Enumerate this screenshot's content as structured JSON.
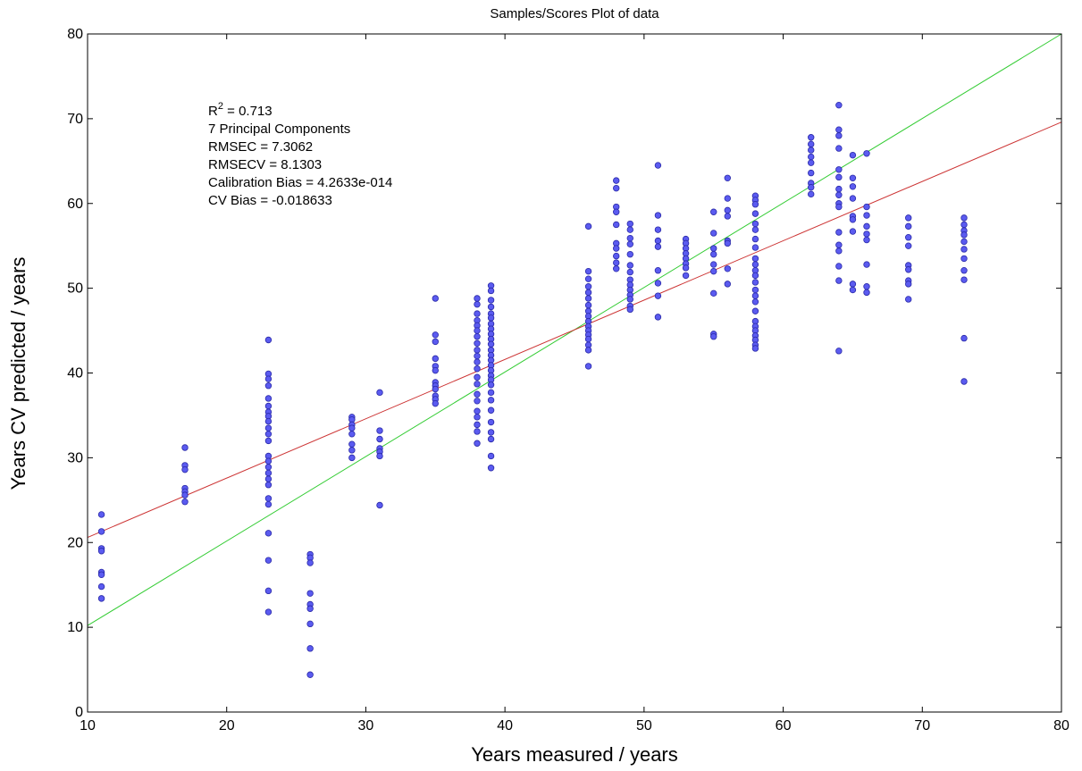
{
  "chart_data": {
    "type": "scatter",
    "title": "Samples/Scores Plot of data",
    "xlabel": "Years measured / years",
    "ylabel": "Years CV predicted / years",
    "xlim": [
      10,
      80
    ],
    "ylim": [
      0,
      80
    ],
    "xticks": [
      10,
      20,
      30,
      40,
      50,
      60,
      70,
      80
    ],
    "yticks": [
      0,
      10,
      20,
      30,
      40,
      50,
      60,
      70,
      80
    ],
    "grid": false,
    "point_color": "#5b5bf0",
    "annotations": [
      {
        "prefix": "R",
        "sup": "2",
        "suffix": " = 0.713"
      },
      {
        "text": "7 Principal Components"
      },
      {
        "text": "RMSEC = 7.3062"
      },
      {
        "text": "RMSECV = 8.1303"
      },
      {
        "text": "Calibration Bias = 4.2633e-014"
      },
      {
        "text": "CV Bias = -0.018633"
      }
    ],
    "lines": [
      {
        "name": "target",
        "color": "#33cc33",
        "x": [
          10,
          80
        ],
        "y": [
          10.2,
          80
        ]
      },
      {
        "name": "fit",
        "color": "#cc3333",
        "x": [
          10,
          80
        ],
        "y": [
          20.6,
          69.6
        ]
      }
    ],
    "points": [
      [
        11,
        23.3
      ],
      [
        11,
        21.3
      ],
      [
        11,
        19.3
      ],
      [
        11,
        19.0
      ],
      [
        11,
        16.5
      ],
      [
        11,
        16.2
      ],
      [
        11,
        14.8
      ],
      [
        11,
        13.4
      ],
      [
        17,
        31.2
      ],
      [
        17,
        29.1
      ],
      [
        17,
        28.6
      ],
      [
        17,
        26.4
      ],
      [
        17,
        26.0
      ],
      [
        17,
        25.6
      ],
      [
        17,
        24.8
      ],
      [
        23,
        43.9
      ],
      [
        23,
        39.9
      ],
      [
        23,
        39.3
      ],
      [
        23,
        38.5
      ],
      [
        23,
        37.0
      ],
      [
        23,
        36.1
      ],
      [
        23,
        35.4
      ],
      [
        23,
        34.9
      ],
      [
        23,
        34.3
      ],
      [
        23,
        33.5
      ],
      [
        23,
        32.8
      ],
      [
        23,
        32.0
      ],
      [
        23,
        30.2
      ],
      [
        23,
        29.6
      ],
      [
        23,
        28.9
      ],
      [
        23,
        28.2
      ],
      [
        23,
        27.5
      ],
      [
        23,
        26.8
      ],
      [
        23,
        25.2
      ],
      [
        23,
        24.5
      ],
      [
        23,
        21.1
      ],
      [
        23,
        17.9
      ],
      [
        23,
        14.3
      ],
      [
        23,
        11.8
      ],
      [
        26,
        18.6
      ],
      [
        26,
        18.2
      ],
      [
        26,
        17.6
      ],
      [
        26,
        14.0
      ],
      [
        26,
        12.7
      ],
      [
        26,
        12.2
      ],
      [
        26,
        10.4
      ],
      [
        26,
        7.5
      ],
      [
        26,
        4.4
      ],
      [
        29,
        34.8
      ],
      [
        29,
        34.5
      ],
      [
        29,
        33.9
      ],
      [
        29,
        33.5
      ],
      [
        29,
        32.8
      ],
      [
        29,
        31.6
      ],
      [
        29,
        30.9
      ],
      [
        29,
        30.0
      ],
      [
        31,
        37.7
      ],
      [
        31,
        33.2
      ],
      [
        31,
        32.2
      ],
      [
        31,
        31.1
      ],
      [
        31,
        30.7
      ],
      [
        31,
        30.2
      ],
      [
        31,
        24.4
      ],
      [
        35,
        48.8
      ],
      [
        35,
        44.5
      ],
      [
        35,
        43.7
      ],
      [
        35,
        41.7
      ],
      [
        35,
        40.8
      ],
      [
        35,
        40.3
      ],
      [
        35,
        38.9
      ],
      [
        35,
        38.5
      ],
      [
        35,
        38.1
      ],
      [
        35,
        37.3
      ],
      [
        35,
        36.9
      ],
      [
        35,
        36.4
      ],
      [
        38,
        48.8
      ],
      [
        38,
        48.1
      ],
      [
        38,
        47.0
      ],
      [
        38,
        46.2
      ],
      [
        38,
        45.6
      ],
      [
        38,
        45.0
      ],
      [
        38,
        44.3
      ],
      [
        38,
        43.5
      ],
      [
        38,
        42.7
      ],
      [
        38,
        42.0
      ],
      [
        38,
        41.3
      ],
      [
        38,
        40.5
      ],
      [
        38,
        39.5
      ],
      [
        38,
        38.7
      ],
      [
        38,
        37.5
      ],
      [
        38,
        36.7
      ],
      [
        38,
        35.5
      ],
      [
        38,
        34.8
      ],
      [
        38,
        33.9
      ],
      [
        38,
        33.1
      ],
      [
        38,
        31.7
      ],
      [
        39,
        50.3
      ],
      [
        39,
        49.7
      ],
      [
        39,
        48.6
      ],
      [
        39,
        47.8
      ],
      [
        39,
        47.0
      ],
      [
        39,
        46.5
      ],
      [
        39,
        45.8
      ],
      [
        39,
        45.2
      ],
      [
        39,
        44.6
      ],
      [
        39,
        44.0
      ],
      [
        39,
        43.4
      ],
      [
        39,
        42.7
      ],
      [
        39,
        42.1
      ],
      [
        39,
        41.5
      ],
      [
        39,
        40.9
      ],
      [
        39,
        40.3
      ],
      [
        39,
        39.7
      ],
      [
        39,
        39.2
      ],
      [
        39,
        38.6
      ],
      [
        39,
        37.7
      ],
      [
        39,
        36.8
      ],
      [
        39,
        35.6
      ],
      [
        39,
        34.2
      ],
      [
        39,
        33.0
      ],
      [
        39,
        32.2
      ],
      [
        39,
        30.2
      ],
      [
        39,
        28.8
      ],
      [
        46,
        57.3
      ],
      [
        46,
        52.0
      ],
      [
        46,
        51.1
      ],
      [
        46,
        50.2
      ],
      [
        46,
        49.5
      ],
      [
        46,
        48.8
      ],
      [
        46,
        48.0
      ],
      [
        46,
        47.3
      ],
      [
        46,
        46.7
      ],
      [
        46,
        46.1
      ],
      [
        46,
        45.5
      ],
      [
        46,
        45.0
      ],
      [
        46,
        44.5
      ],
      [
        46,
        44.0
      ],
      [
        46,
        43.3
      ],
      [
        46,
        42.7
      ],
      [
        46,
        40.8
      ],
      [
        48,
        62.7
      ],
      [
        48,
        61.8
      ],
      [
        48,
        59.6
      ],
      [
        48,
        59.0
      ],
      [
        48,
        57.5
      ],
      [
        48,
        55.3
      ],
      [
        48,
        54.7
      ],
      [
        48,
        53.8
      ],
      [
        48,
        53.0
      ],
      [
        48,
        52.3
      ],
      [
        49,
        57.6
      ],
      [
        49,
        56.9
      ],
      [
        49,
        55.9
      ],
      [
        49,
        55.2
      ],
      [
        49,
        54.0
      ],
      [
        49,
        52.7
      ],
      [
        49,
        51.9
      ],
      [
        49,
        51.0
      ],
      [
        49,
        50.4
      ],
      [
        49,
        49.8
      ],
      [
        49,
        49.2
      ],
      [
        49,
        48.7
      ],
      [
        49,
        47.9
      ],
      [
        49,
        47.5
      ],
      [
        51,
        64.5
      ],
      [
        51,
        58.6
      ],
      [
        51,
        56.9
      ],
      [
        51,
        55.6
      ],
      [
        51,
        54.9
      ],
      [
        51,
        52.1
      ],
      [
        51,
        50.6
      ],
      [
        51,
        49.1
      ],
      [
        51,
        46.6
      ],
      [
        53,
        55.8
      ],
      [
        53,
        55.3
      ],
      [
        53,
        54.7
      ],
      [
        53,
        54.1
      ],
      [
        53,
        53.5
      ],
      [
        53,
        52.9
      ],
      [
        53,
        52.4
      ],
      [
        53,
        51.5
      ],
      [
        55,
        59.0
      ],
      [
        55,
        56.5
      ],
      [
        55,
        54.7
      ],
      [
        55,
        54.0
      ],
      [
        55,
        52.8
      ],
      [
        55,
        52.0
      ],
      [
        55,
        49.4
      ],
      [
        55,
        44.6
      ],
      [
        55,
        44.3
      ],
      [
        56,
        63.0
      ],
      [
        56,
        60.6
      ],
      [
        56,
        59.2
      ],
      [
        56,
        58.5
      ],
      [
        56,
        55.6
      ],
      [
        56,
        55.3
      ],
      [
        56,
        52.3
      ],
      [
        56,
        50.5
      ],
      [
        58,
        60.9
      ],
      [
        58,
        60.4
      ],
      [
        58,
        59.9
      ],
      [
        58,
        58.8
      ],
      [
        58,
        57.6
      ],
      [
        58,
        56.9
      ],
      [
        58,
        55.8
      ],
      [
        58,
        54.8
      ],
      [
        58,
        53.5
      ],
      [
        58,
        52.8
      ],
      [
        58,
        52.1
      ],
      [
        58,
        51.5
      ],
      [
        58,
        50.7
      ],
      [
        58,
        49.8
      ],
      [
        58,
        49.1
      ],
      [
        58,
        48.4
      ],
      [
        58,
        47.3
      ],
      [
        58,
        46.1
      ],
      [
        58,
        45.5
      ],
      [
        58,
        45.0
      ],
      [
        58,
        44.4
      ],
      [
        58,
        43.9
      ],
      [
        58,
        43.3
      ],
      [
        58,
        42.9
      ],
      [
        62,
        67.8
      ],
      [
        62,
        67.0
      ],
      [
        62,
        66.3
      ],
      [
        62,
        65.5
      ],
      [
        62,
        64.8
      ],
      [
        62,
        63.6
      ],
      [
        62,
        62.4
      ],
      [
        62,
        61.9
      ],
      [
        62,
        61.1
      ],
      [
        64,
        71.6
      ],
      [
        64,
        68.7
      ],
      [
        64,
        68.0
      ],
      [
        64,
        66.5
      ],
      [
        64,
        64.0
      ],
      [
        64,
        63.1
      ],
      [
        64,
        61.7
      ],
      [
        64,
        61.0
      ],
      [
        64,
        60.0
      ],
      [
        64,
        59.6
      ],
      [
        64,
        56.6
      ],
      [
        64,
        55.1
      ],
      [
        64,
        54.4
      ],
      [
        64,
        52.6
      ],
      [
        64,
        50.9
      ],
      [
        64,
        42.6
      ],
      [
        65,
        65.7
      ],
      [
        65,
        63.0
      ],
      [
        65,
        62.0
      ],
      [
        65,
        60.6
      ],
      [
        65,
        58.5
      ],
      [
        65,
        58.1
      ],
      [
        65,
        56.7
      ],
      [
        65,
        50.5
      ],
      [
        65,
        49.8
      ],
      [
        66,
        65.9
      ],
      [
        66,
        59.6
      ],
      [
        66,
        58.6
      ],
      [
        66,
        57.3
      ],
      [
        66,
        56.4
      ],
      [
        66,
        55.7
      ],
      [
        66,
        52.8
      ],
      [
        66,
        50.2
      ],
      [
        66,
        49.5
      ],
      [
        69,
        58.3
      ],
      [
        69,
        57.3
      ],
      [
        69,
        56.0
      ],
      [
        69,
        55.0
      ],
      [
        69,
        52.7
      ],
      [
        69,
        52.2
      ],
      [
        69,
        50.9
      ],
      [
        69,
        50.5
      ],
      [
        69,
        48.7
      ],
      [
        73,
        58.3
      ],
      [
        73,
        57.5
      ],
      [
        73,
        56.8
      ],
      [
        73,
        56.3
      ],
      [
        73,
        55.5
      ],
      [
        73,
        54.6
      ],
      [
        73,
        53.5
      ],
      [
        73,
        52.1
      ],
      [
        73,
        51.0
      ],
      [
        73,
        44.1
      ],
      [
        73,
        39.0
      ]
    ]
  }
}
